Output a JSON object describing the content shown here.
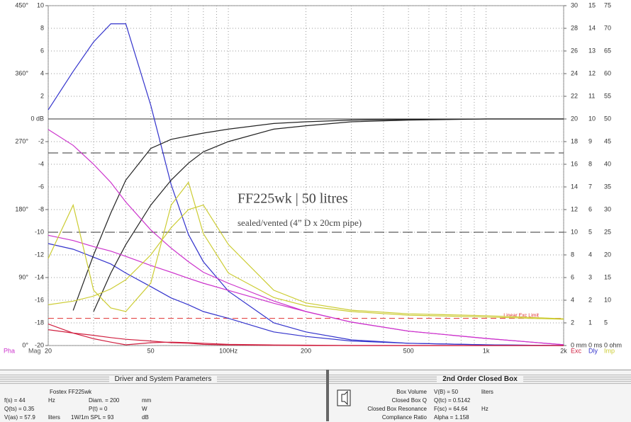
{
  "chart_data": {
    "type": "line",
    "title": "FF225wk | 50 litres",
    "subtitle": "sealed/vented (4” D x 20cm pipe)",
    "xscale": "log",
    "xlim": [
      20,
      2000
    ],
    "xticks": [
      20,
      50,
      {
        "value": 100,
        "label": "100Hz"
      },
      200,
      500,
      {
        "value": 1000,
        "label": "1k"
      },
      {
        "value": 2000,
        "label": "2k"
      }
    ],
    "xminor": [
      30,
      40,
      60,
      70,
      80,
      90,
      300,
      400,
      600,
      700,
      800,
      900
    ],
    "ylim": [
      -20,
      10
    ],
    "yticks": [
      -20,
      -18,
      -16,
      -14,
      -12,
      -10,
      -8,
      -6,
      -4,
      -2,
      {
        "value": 0,
        "label": "0 dB"
      },
      2,
      4,
      6,
      8,
      10
    ],
    "y2lim": [
      0,
      450
    ],
    "y2ticks": [
      {
        "value": 0,
        "label": "0°"
      },
      {
        "value": 90,
        "label": "90°"
      },
      {
        "value": 180,
        "label": "180°"
      },
      {
        "value": 270,
        "label": "270°"
      },
      {
        "value": 360,
        "label": "360°"
      },
      {
        "value": 450,
        "label": "450°"
      }
    ],
    "y3lim": [
      0,
      30
    ],
    "y3ticks": [
      {
        "value": 0,
        "label": "0 mm"
      },
      2,
      4,
      6,
      8,
      10,
      12,
      14,
      16,
      18,
      20,
      22,
      24,
      26,
      28,
      30
    ],
    "y4lim": [
      0,
      15
    ],
    "y4ticks": [
      {
        "value": 0,
        "label": "0 ms"
      },
      1,
      2,
      3,
      4,
      5,
      6,
      7,
      8,
      9,
      10,
      11,
      12,
      13,
      14,
      15
    ],
    "y5lim": [
      0,
      75
    ],
    "y5ticks": [
      {
        "value": 0,
        "label": "0 ohm"
      },
      5,
      10,
      15,
      20,
      25,
      30,
      35,
      40,
      45,
      50,
      55,
      60,
      65,
      70,
      75
    ],
    "axis_labels": [
      {
        "text": "Pha",
        "color": "#cc33cc"
      },
      {
        "text": "Mag",
        "color": "#555555"
      },
      {
        "text": "Exc",
        "color": "#d02040"
      },
      {
        "text": "Dly",
        "color": "#3333cc"
      },
      {
        "text": "Imp",
        "color": "#cccc33"
      }
    ],
    "reference_lines": [
      -3,
      -10
    ],
    "exc_limit": {
      "label": "Linear Exc Limit",
      "value": 2.4,
      "color": "#e03030"
    },
    "x": [
      20,
      25,
      30,
      35,
      40,
      50,
      60,
      70,
      80,
      100,
      150,
      200,
      300,
      500,
      1000,
      2000
    ],
    "series": [
      {
        "axis": "y4",
        "color": "#3333cc",
        "values": [
          10.4,
          12.1,
          13.4,
          14.2,
          14.2,
          10.6,
          7.1,
          4.9,
          3.7,
          2.4,
          1.0,
          0.6,
          0.25,
          0.1,
          0.03,
          0
        ]
      },
      {
        "axis": "y4",
        "color": "#3333cc",
        "values": [
          4.5,
          4.25,
          3.9,
          3.6,
          3.2,
          2.6,
          2.1,
          1.8,
          1.5,
          1.2,
          0.6,
          0.4,
          0.2,
          0.1,
          0.03,
          0
        ]
      },
      {
        "axis": "y",
        "color": "#222222",
        "values": [
          null,
          -16.9,
          -12,
          -8.3,
          -5.4,
          -2.6,
          -1.8,
          -1.5,
          -1.25,
          -0.9,
          -0.4,
          -0.25,
          -0.1,
          -0.05,
          0,
          0
        ]
      },
      {
        "axis": "y",
        "color": "#222222",
        "values": [
          null,
          null,
          -17,
          -13.6,
          -11.1,
          -7.6,
          -5.4,
          -3.9,
          -2.9,
          -2,
          -0.9,
          -0.6,
          -0.25,
          -0.1,
          0,
          0
        ]
      },
      {
        "axis": "y2",
        "color": "#cc33cc",
        "values": [
          286,
          265,
          240,
          216,
          190,
          153,
          129,
          111,
          97,
          82.5,
          59,
          45,
          31,
          19,
          9.4,
          1
        ]
      },
      {
        "axis": "y2",
        "color": "#cc33cc",
        "values": [
          146,
          139,
          131,
          125,
          118,
          106,
          97,
          89,
          82.5,
          73,
          56,
          45,
          31,
          19,
          9.4,
          1
        ]
      },
      {
        "axis": "y3",
        "color": "#d02040",
        "values": [
          1.9,
          1.1,
          0.6,
          0.3,
          0.06,
          0.25,
          0.3,
          0.25,
          0.2,
          0.1,
          0.05,
          0.03,
          0,
          0,
          0,
          0
        ]
      },
      {
        "axis": "y3",
        "color": "#d02040",
        "values": [
          1.4,
          1.1,
          0.9,
          0.7,
          0.55,
          0.4,
          0.25,
          0.2,
          0.1,
          0.05,
          0.02,
          0,
          0,
          0,
          0,
          0
        ]
      },
      {
        "axis": "y5",
        "color": "#cccc33",
        "values": [
          19.2,
          31,
          12.2,
          8.3,
          7.5,
          13.8,
          31,
          36,
          24.7,
          16,
          10.6,
          8.75,
          7.5,
          6.7,
          6.3,
          5.8
        ]
      },
      {
        "axis": "y5",
        "color": "#cccc33",
        "values": [
          9,
          9.8,
          10.9,
          12.5,
          14.5,
          20,
          26,
          30,
          31,
          22.3,
          12.2,
          9.4,
          7.8,
          7,
          6.6,
          5.9
        ]
      }
    ]
  },
  "driver_panel": {
    "header": "Driver and System Parameters",
    "driver": "Fostex FF225wk",
    "fs": "f(s) = 44",
    "fs_unit": "Hz",
    "diam": "Diam. = 200",
    "diam_unit": "mm",
    "qts": "Q(ts) = 0.35",
    "pt": "P(t) = 0",
    "pt_unit": "W",
    "vas": "V(as) = 57.9",
    "vas_unit": "liters",
    "spl": "1W/1m SPL = 93",
    "spl_unit": "dB"
  },
  "box_panel": {
    "header": "2nd Order Closed Box",
    "rows": [
      {
        "label": "Box Volume",
        "value": "V(B) = 50",
        "unit": "liters"
      },
      {
        "label": "Closed Box Q",
        "value": "Q(tc) = 0.5142"
      },
      {
        "label": "Closed Box Resonance",
        "value": "F(sc) = 64.64",
        "unit": "Hz"
      },
      {
        "label": "Compliance Ratio",
        "value": "Alpha = 1.158"
      }
    ]
  }
}
